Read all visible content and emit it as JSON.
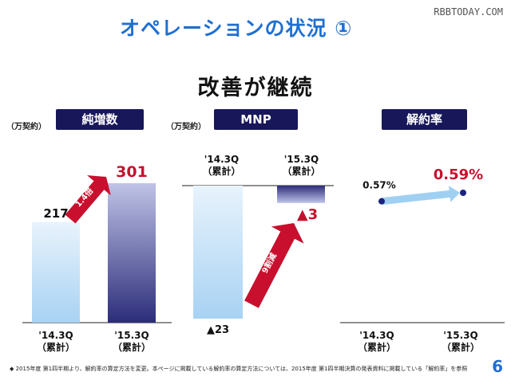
{
  "header": {
    "title": "オペレーションの状況 ①",
    "watermark": "RBBTODAY.COM",
    "subtitle": "改善が継続"
  },
  "colors": {
    "title_blue": "#1f6fd1",
    "panel_navy": "#17175a",
    "accent_red": "#c8102e",
    "bar_light_top": "#e8f3fc",
    "bar_light_bottom": "#a8d2f3",
    "bar_dark_top": "#bfc3e6",
    "bar_dark_bottom": "#2c2d7a",
    "rate_line": "#9fd0f2",
    "rate_point": "#1a237e"
  },
  "chart_data": [
    {
      "type": "bar",
      "title": "純増数",
      "unit": "（万契約）",
      "categories": [
        "'14.3Q\n（累計）",
        "'15.3Q\n（累計）"
      ],
      "values": [
        217,
        301
      ],
      "value_labels": [
        "217",
        "301"
      ],
      "annotation": "1.4倍",
      "ylim": [
        0,
        301
      ]
    },
    {
      "type": "bar",
      "title": "MNP",
      "unit": "（万契約）",
      "categories": [
        "'14.3Q\n（累計）",
        "'15.3Q\n（累計）"
      ],
      "values": [
        -23,
        -3
      ],
      "value_labels": [
        "▲23",
        "▲3"
      ],
      "annotation": "9割減",
      "ylim": [
        -23,
        0
      ]
    },
    {
      "type": "line",
      "title": "解約率",
      "categories": [
        "'14.3Q\n（累計）",
        "'15.3Q\n（累計）"
      ],
      "values": [
        0.57,
        0.59
      ],
      "value_labels": [
        "0.57%",
        "0.59%"
      ],
      "ylim": [
        0.5,
        0.65
      ]
    }
  ],
  "footer": {
    "note": "◆ 2015年度 第1四半期より、解約率の算定方法を変更。本ページに掲載している解約率の算定方法については、2015年度 第1四半期決算の発表資料に掲載している「解約率」を参照",
    "page": "6"
  }
}
